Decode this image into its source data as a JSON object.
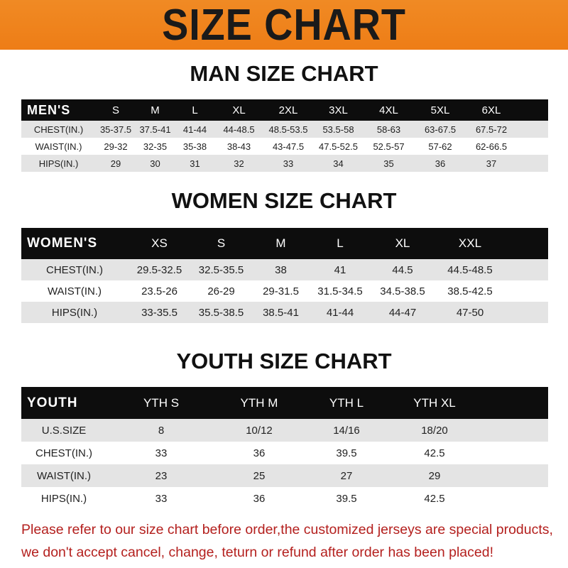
{
  "banner": "SIZE CHART",
  "men": {
    "title": "MAN SIZE CHART",
    "header": [
      "MEN'S",
      "S",
      "M",
      "L",
      "XL",
      "2XL",
      "3XL",
      "4XL",
      "5XL",
      "6XL"
    ],
    "rows": [
      [
        "CHEST(IN.)",
        "35-37.5",
        "37.5-41",
        "41-44",
        "44-48.5",
        "48.5-53.5",
        "53.5-58",
        "58-63",
        "63-67.5",
        "67.5-72"
      ],
      [
        "WAIST(IN.)",
        "29-32",
        "32-35",
        "35-38",
        "38-43",
        "43-47.5",
        "47.5-52.5",
        "52.5-57",
        "57-62",
        "62-66.5"
      ],
      [
        "HIPS(IN.)",
        "29",
        "30",
        "31",
        "32",
        "33",
        "34",
        "35",
        "36",
        "37"
      ]
    ]
  },
  "women": {
    "title": "WOMEN SIZE CHART",
    "header": [
      "WOMEN'S",
      "XS",
      "S",
      "M",
      "L",
      "XL",
      "XXL"
    ],
    "rows": [
      [
        "CHEST(IN.)",
        "29.5-32.5",
        "32.5-35.5",
        "38",
        "41",
        "44.5",
        "44.5-48.5"
      ],
      [
        "WAIST(IN.)",
        "23.5-26",
        "26-29",
        "29-31.5",
        "31.5-34.5",
        "34.5-38.5",
        "38.5-42.5"
      ],
      [
        "HIPS(IN.)",
        "33-35.5",
        "35.5-38.5",
        "38.5-41",
        "41-44",
        "44-47",
        "47-50"
      ]
    ]
  },
  "youth": {
    "title": "YOUTH SIZE CHART",
    "header": [
      "YOUTH",
      "YTH S",
      "YTH M",
      "YTH L",
      "YTH XL"
    ],
    "rows": [
      [
        "U.S.SIZE",
        "8",
        "10/12",
        "14/16",
        "18/20"
      ],
      [
        "CHEST(IN.)",
        "33",
        "36",
        "39.5",
        "42.5"
      ],
      [
        "WAIST(IN.)",
        "23",
        "25",
        "27",
        "29"
      ],
      [
        "HIPS(IN.)",
        "33",
        "36",
        "39.5",
        "42.5"
      ]
    ]
  },
  "note": [
    "Please refer to our size chart before order,the customized jerseys are special products,",
    "we don't accept cancel, change, teturn or refund after order has been placed!"
  ],
  "colors": {
    "banner": "#ee7d16",
    "header_row": "#0d0d0d",
    "stripe": "#e4e4e4",
    "note": "#b4201e"
  }
}
